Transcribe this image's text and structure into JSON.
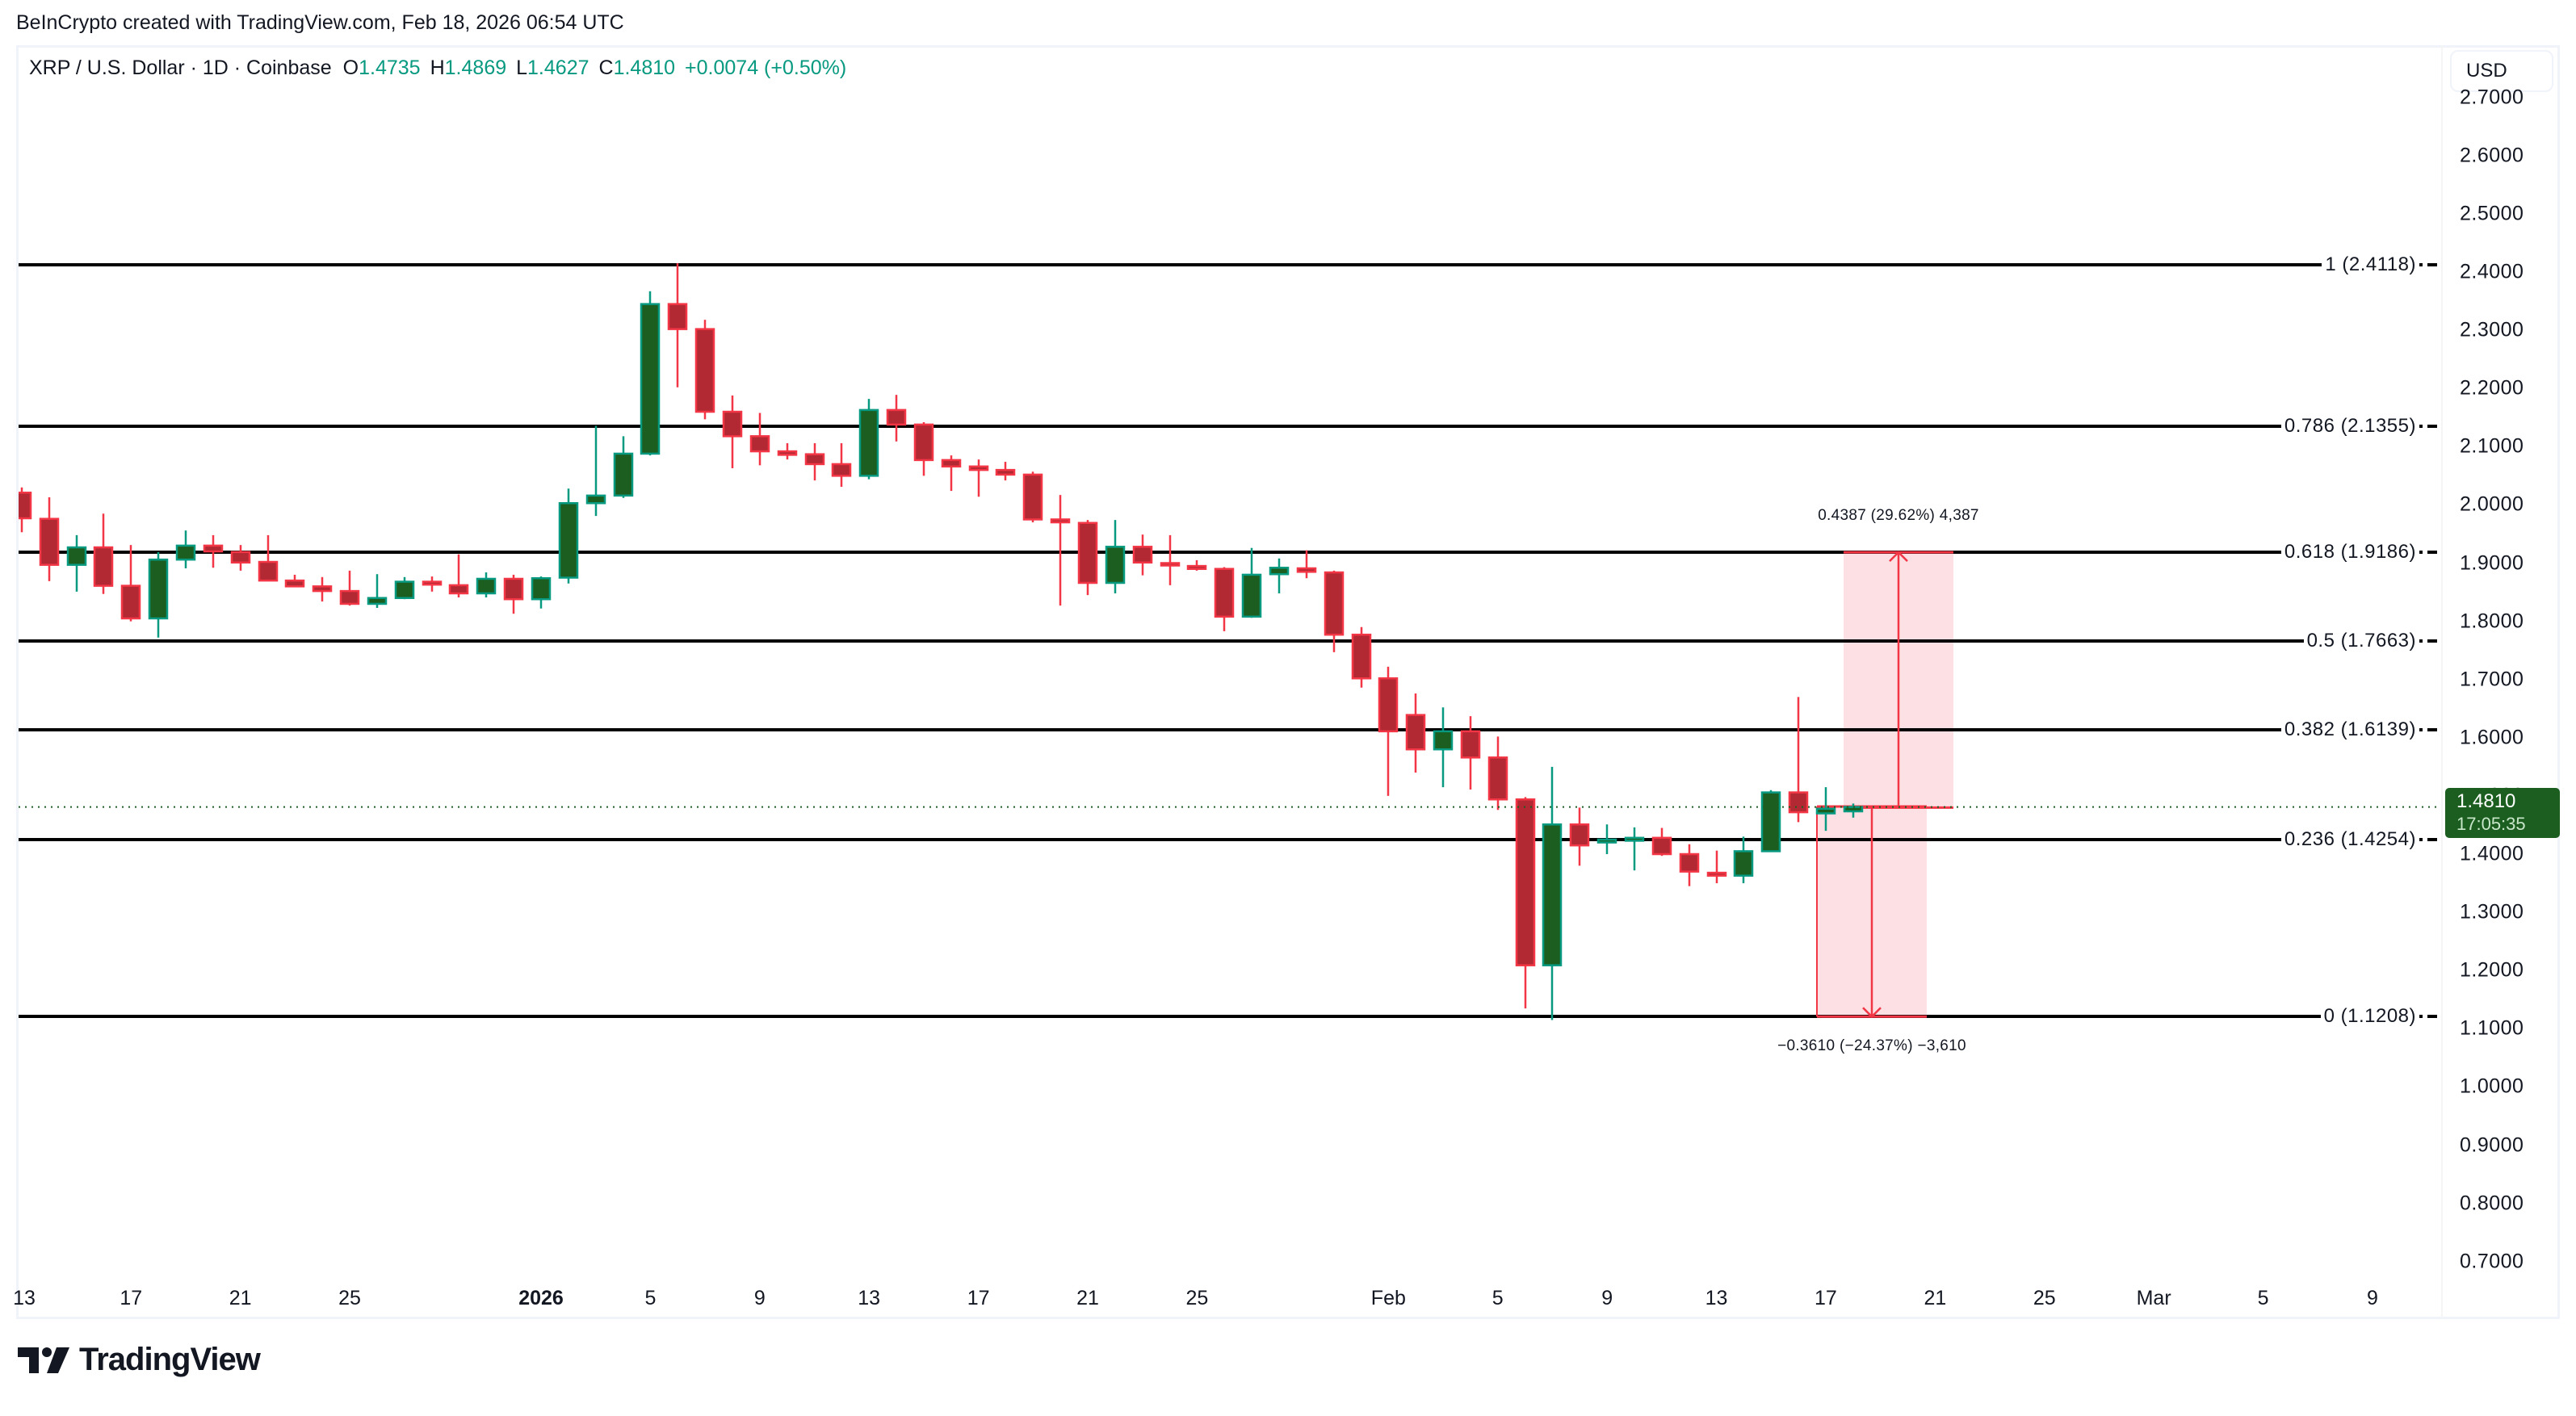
{
  "header": {
    "credit": "BeInCrypto created with TradingView.com, Feb 18, 2026 06:54 UTC"
  },
  "legend": {
    "symbol": "XRP / U.S. Dollar · 1D · Coinbase",
    "open_key": "O",
    "open": "1.4735",
    "high_key": "H",
    "high": "1.4869",
    "low_key": "L",
    "low": "1.4627",
    "close_key": "C",
    "close": "1.4810",
    "change": "+0.0074 (+0.50%)"
  },
  "currency_button": {
    "label": "USD"
  },
  "price_tag": {
    "price": "1.4810",
    "countdown": "17:05:35"
  },
  "fib_levels": [
    {
      "label": "1 (2.4118)",
      "ratio": 1,
      "price": 2.4118
    },
    {
      "label": "0.786 (2.1355)",
      "ratio": 0.786,
      "price": 2.1355
    },
    {
      "label": "0.618 (1.9186)",
      "ratio": 0.618,
      "price": 1.9186
    },
    {
      "label": "0.5 (1.7663)",
      "ratio": 0.5,
      "price": 1.7663
    },
    {
      "label": "0.382 (1.6139)",
      "ratio": 0.382,
      "price": 1.6139
    },
    {
      "label": "0.236 (1.4254)",
      "ratio": 0.236,
      "price": 1.4254
    },
    {
      "label": "0 (1.1208)",
      "ratio": 0,
      "price": 1.1208
    }
  ],
  "measurements": {
    "up": {
      "label": "0.4387 (29.62%) 4,387",
      "from": 1.4799,
      "to": 1.9186
    },
    "down": {
      "label": "−0.3610 (−24.37%) −3,610",
      "from": 1.4818,
      "to": 1.1208
    }
  },
  "y_axis": [
    "2.7000",
    "2.6000",
    "2.5000",
    "2.4000",
    "2.3000",
    "2.2000",
    "2.1000",
    "2.0000",
    "1.9000",
    "1.8000",
    "1.7000",
    "1.6000",
    "1.5000",
    "1.4000",
    "1.3000",
    "1.2000",
    "1.1000",
    "1.0000",
    "0.9000",
    "0.8000",
    "0.7000"
  ],
  "x_axis": [
    {
      "label": "13",
      "day": -19
    },
    {
      "label": "17",
      "day": -15
    },
    {
      "label": "21",
      "day": -11
    },
    {
      "label": "25",
      "day": -7
    },
    {
      "label": "2026",
      "day": 0,
      "bold": true
    },
    {
      "label": "5",
      "day": 4
    },
    {
      "label": "9",
      "day": 8
    },
    {
      "label": "13",
      "day": 12
    },
    {
      "label": "17",
      "day": 16
    },
    {
      "label": "21",
      "day": 20
    },
    {
      "label": "25",
      "day": 24
    },
    {
      "label": "Feb",
      "day": 31
    },
    {
      "label": "5",
      "day": 35
    },
    {
      "label": "9",
      "day": 39
    },
    {
      "label": "13",
      "day": 43
    },
    {
      "label": "17",
      "day": 47
    },
    {
      "label": "21",
      "day": 51
    },
    {
      "label": "25",
      "day": 55
    },
    {
      "label": "Mar",
      "day": 59
    },
    {
      "label": "5",
      "day": 63
    },
    {
      "label": "9",
      "day": 67
    }
  ],
  "logo": {
    "text": "TradingView"
  },
  "colors": {
    "up_body": "#1b5e20",
    "up_border": "#089981",
    "down_body": "#b22833",
    "down_border": "#f23645",
    "fib_line": "#000000",
    "measure_fill": "#fde0e3",
    "measure_line": "#f23645",
    "price_line": "#1b5e20"
  },
  "chart_data": {
    "type": "candlestick",
    "title": "XRP / U.S. Dollar · 1D · Coinbase",
    "xlabel": "",
    "ylabel": "USD",
    "ylim": [
      0.65,
      2.75
    ],
    "grid": false,
    "candles": [
      {
        "d": "Dec 13",
        "o": 2.01,
        "h": 2.046,
        "l": 2.005,
        "c": 2.021
      },
      {
        "d": "Dec 14",
        "o": 2.021,
        "h": 2.03,
        "l": 1.953,
        "c": 1.977
      },
      {
        "d": "Dec 15",
        "o": 1.976,
        "h": 2.013,
        "l": 1.869,
        "c": 1.897
      },
      {
        "d": "Dec 16",
        "o": 1.897,
        "h": 1.948,
        "l": 1.851,
        "c": 1.927
      },
      {
        "d": "Dec 17",
        "o": 1.927,
        "h": 1.985,
        "l": 1.847,
        "c": 1.861
      },
      {
        "d": "Dec 18",
        "o": 1.861,
        "h": 1.931,
        "l": 1.8,
        "c": 1.805
      },
      {
        "d": "Dec 19",
        "o": 1.805,
        "h": 1.919,
        "l": 1.772,
        "c": 1.906
      },
      {
        "d": "Dec 20",
        "o": 1.906,
        "h": 1.956,
        "l": 1.891,
        "c": 1.93
      },
      {
        "d": "Dec 21",
        "o": 1.93,
        "h": 1.948,
        "l": 1.892,
        "c": 1.92
      },
      {
        "d": "Dec 22",
        "o": 1.919,
        "h": 1.931,
        "l": 1.887,
        "c": 1.901
      },
      {
        "d": "Dec 23",
        "o": 1.902,
        "h": 1.948,
        "l": 1.89,
        "c": 1.87
      },
      {
        "d": "Dec 24",
        "o": 1.87,
        "h": 1.88,
        "l": 1.862,
        "c": 1.86
      },
      {
        "d": "Dec 25",
        "o": 1.86,
        "h": 1.876,
        "l": 1.834,
        "c": 1.852
      },
      {
        "d": "Dec 26",
        "o": 1.852,
        "h": 1.887,
        "l": 1.827,
        "c": 1.83
      },
      {
        "d": "Dec 27",
        "o": 1.83,
        "h": 1.881,
        "l": 1.823,
        "c": 1.84
      },
      {
        "d": "Dec 28",
        "o": 1.84,
        "h": 1.876,
        "l": 1.838,
        "c": 1.868
      },
      {
        "d": "Dec 29",
        "o": 1.868,
        "h": 1.877,
        "l": 1.851,
        "c": 1.863
      },
      {
        "d": "Dec 30",
        "o": 1.862,
        "h": 1.915,
        "l": 1.841,
        "c": 1.848
      },
      {
        "d": "Dec 31",
        "o": 1.848,
        "h": 1.884,
        "l": 1.841,
        "c": 1.873
      },
      {
        "d": "Jan 1",
        "o": 1.873,
        "h": 1.88,
        "l": 1.813,
        "c": 1.838
      },
      {
        "d": "Jan 2",
        "o": 1.838,
        "h": 1.877,
        "l": 1.822,
        "c": 1.874
      },
      {
        "d": "Jan 3",
        "o": 1.875,
        "h": 2.028,
        "l": 1.865,
        "c": 2.003
      },
      {
        "d": "Jan 4",
        "o": 2.003,
        "h": 2.136,
        "l": 1.981,
        "c": 2.016
      },
      {
        "d": "Jan 5",
        "o": 2.016,
        "h": 2.118,
        "l": 2.012,
        "c": 2.088
      },
      {
        "d": "Jan 6",
        "o": 2.088,
        "h": 2.367,
        "l": 2.085,
        "c": 2.345
      },
      {
        "d": "Jan 7",
        "o": 2.345,
        "h": 2.415,
        "l": 2.202,
        "c": 2.302
      },
      {
        "d": "Jan 8",
        "o": 2.302,
        "h": 2.318,
        "l": 2.147,
        "c": 2.16
      },
      {
        "d": "Jan 9",
        "o": 2.16,
        "h": 2.188,
        "l": 2.063,
        "c": 2.118
      },
      {
        "d": "Jan 10",
        "o": 2.118,
        "h": 2.158,
        "l": 2.068,
        "c": 2.092
      },
      {
        "d": "Jan 11",
        "o": 2.092,
        "h": 2.106,
        "l": 2.078,
        "c": 2.086
      },
      {
        "d": "Jan 12",
        "o": 2.087,
        "h": 2.106,
        "l": 2.042,
        "c": 2.07
      },
      {
        "d": "Jan 13",
        "o": 2.07,
        "h": 2.106,
        "l": 2.031,
        "c": 2.05
      },
      {
        "d": "Jan 14",
        "o": 2.05,
        "h": 2.182,
        "l": 2.044,
        "c": 2.163
      },
      {
        "d": "Jan 15",
        "o": 2.163,
        "h": 2.189,
        "l": 2.109,
        "c": 2.138
      },
      {
        "d": "Jan 16",
        "o": 2.138,
        "h": 2.142,
        "l": 2.05,
        "c": 2.077
      },
      {
        "d": "Jan 17",
        "o": 2.077,
        "h": 2.085,
        "l": 2.024,
        "c": 2.066
      },
      {
        "d": "Jan 18",
        "o": 2.066,
        "h": 2.078,
        "l": 2.014,
        "c": 2.06
      },
      {
        "d": "Jan 19",
        "o": 2.06,
        "h": 2.074,
        "l": 2.042,
        "c": 2.052
      },
      {
        "d": "Jan 20",
        "o": 2.052,
        "h": 2.057,
        "l": 1.97,
        "c": 1.975
      },
      {
        "d": "Jan 21",
        "o": 1.975,
        "h": 2.017,
        "l": 1.827,
        "c": 1.97
      },
      {
        "d": "Jan 22",
        "o": 1.969,
        "h": 1.974,
        "l": 1.845,
        "c": 1.866
      },
      {
        "d": "Jan 23",
        "o": 1.866,
        "h": 1.974,
        "l": 1.848,
        "c": 1.928
      },
      {
        "d": "Jan 24",
        "o": 1.928,
        "h": 1.949,
        "l": 1.879,
        "c": 1.901
      },
      {
        "d": "Jan 25",
        "o": 1.9,
        "h": 1.948,
        "l": 1.862,
        "c": 1.899
      },
      {
        "d": "Jan 26",
        "o": 1.895,
        "h": 1.905,
        "l": 1.887,
        "c": 1.89
      },
      {
        "d": "Jan 27",
        "o": 1.89,
        "h": 1.893,
        "l": 1.783,
        "c": 1.808
      },
      {
        "d": "Jan 28",
        "o": 1.808,
        "h": 1.926,
        "l": 1.806,
        "c": 1.88
      },
      {
        "d": "Jan 29",
        "o": 1.881,
        "h": 1.908,
        "l": 1.848,
        "c": 1.892
      },
      {
        "d": "Jan 30",
        "o": 1.891,
        "h": 1.922,
        "l": 1.874,
        "c": 1.885
      },
      {
        "d": "Jan 31",
        "o": 1.884,
        "h": 1.887,
        "l": 1.747,
        "c": 1.777
      },
      {
        "d": "Feb 1",
        "o": 1.777,
        "h": 1.79,
        "l": 1.686,
        "c": 1.702
      },
      {
        "d": "Feb 2",
        "o": 1.702,
        "h": 1.722,
        "l": 1.5,
        "c": 1.611
      },
      {
        "d": "Feb 3",
        "o": 1.639,
        "h": 1.676,
        "l": 1.54,
        "c": 1.58
      },
      {
        "d": "Feb 4",
        "o": 1.58,
        "h": 1.652,
        "l": 1.515,
        "c": 1.611
      },
      {
        "d": "Feb 5",
        "o": 1.611,
        "h": 1.637,
        "l": 1.511,
        "c": 1.566
      },
      {
        "d": "Feb 6",
        "o": 1.566,
        "h": 1.602,
        "l": 1.476,
        "c": 1.494
      },
      {
        "d": "Feb 7",
        "o": 1.494,
        "h": 1.498,
        "l": 1.135,
        "c": 1.209
      },
      {
        "d": "Feb 8",
        "o": 1.209,
        "h": 1.55,
        "l": 1.115,
        "c": 1.451
      },
      {
        "d": "Feb 9",
        "o": 1.451,
        "h": 1.48,
        "l": 1.38,
        "c": 1.415
      },
      {
        "d": "Feb 10",
        "o": 1.42,
        "h": 1.451,
        "l": 1.4,
        "c": 1.425
      },
      {
        "d": "Feb 11",
        "o": 1.423,
        "h": 1.446,
        "l": 1.372,
        "c": 1.428
      },
      {
        "d": "Feb 12",
        "o": 1.428,
        "h": 1.445,
        "l": 1.397,
        "c": 1.4
      },
      {
        "d": "Feb 13",
        "o": 1.4,
        "h": 1.417,
        "l": 1.345,
        "c": 1.37
      },
      {
        "d": "Feb 14",
        "o": 1.368,
        "h": 1.406,
        "l": 1.35,
        "c": 1.363
      },
      {
        "d": "Feb 15",
        "o": 1.363,
        "h": 1.43,
        "l": 1.35,
        "c": 1.405
      },
      {
        "d": "Feb 16",
        "o": 1.405,
        "h": 1.51,
        "l": 1.405,
        "c": 1.506
      },
      {
        "d": "Feb 17",
        "o": 1.506,
        "h": 1.67,
        "l": 1.455,
        "c": 1.472
      },
      {
        "d": "Feb 17b",
        "o": 1.47,
        "h": 1.515,
        "l": 1.44,
        "c": 1.478
      },
      {
        "d": "Feb 18",
        "o": 1.4735,
        "h": 1.4869,
        "l": 1.4627,
        "c": 1.481
      }
    ]
  }
}
